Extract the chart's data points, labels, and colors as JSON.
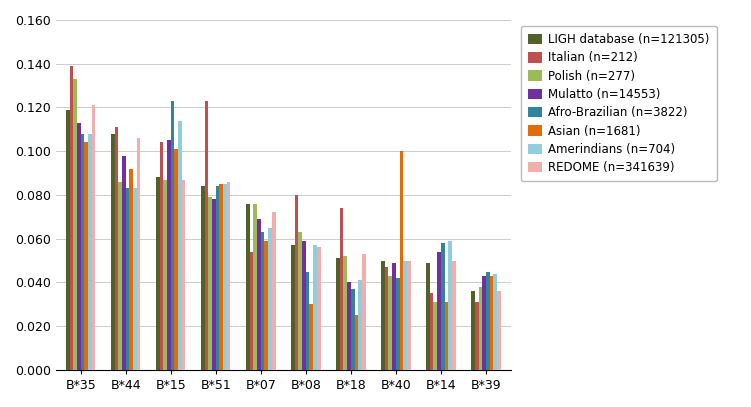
{
  "categories": [
    "B*35",
    "B*44",
    "B*15",
    "B*51",
    "B*07",
    "B*08",
    "B*18",
    "B*40",
    "B*14",
    "B*39"
  ],
  "series": [
    {
      "label": "LIGH database (n=121305)",
      "color": "#4F6228",
      "values": [
        0.119,
        0.108,
        0.088,
        0.084,
        0.076,
        0.057,
        0.051,
        0.05,
        0.049,
        0.036
      ]
    },
    {
      "label": "Italian (n=212)",
      "color": "#C0504D",
      "values": [
        0.139,
        0.111,
        0.104,
        0.123,
        0.054,
        0.08,
        0.074,
        0.047,
        0.035,
        0.031
      ]
    },
    {
      "label": "Polish (n=277)",
      "color": "#9BBB59",
      "values": [
        0.133,
        0.086,
        0.087,
        0.079,
        0.076,
        0.063,
        0.052,
        0.043,
        0.031,
        0.038
      ]
    },
    {
      "label": "Mulatto (n=14553)",
      "color": "#7030A0",
      "values": [
        0.113,
        0.098,
        0.105,
        0.078,
        0.069,
        0.059,
        0.04,
        0.049,
        0.054,
        0.043
      ]
    },
    {
      "label": "Afro-Brazilian (n=3822)",
      "color": "#31849B",
      "values": [
        0.108,
        0.083,
        0.123,
        0.084,
        0.063,
        0.045,
        0.037,
        0.042,
        0.058,
        0.045
      ]
    },
    {
      "label": "Asian (n=1681)",
      "color": "#E36C09",
      "values": [
        0.104,
        0.092,
        0.101,
        0.085,
        0.059,
        0.03,
        0.025,
        0.1,
        0.031,
        0.043
      ]
    },
    {
      "label": "Amerindians (n=704)",
      "color": "#92CDDC",
      "values": [
        0.108,
        0.083,
        0.114,
        0.085,
        0.065,
        0.057,
        0.041,
        0.05,
        0.059,
        0.044
      ]
    },
    {
      "label": "REDOME (n=341639)",
      "color": "#F2AEAD",
      "values": [
        0.121,
        0.106,
        0.087,
        0.086,
        0.072,
        0.056,
        0.053,
        0.05,
        0.05,
        0.036
      ]
    }
  ],
  "ylim": [
    0.0,
    0.16
  ],
  "yticks": [
    0.0,
    0.02,
    0.04,
    0.06,
    0.08,
    0.1,
    0.12,
    0.14,
    0.16
  ],
  "background_color": "#ffffff",
  "legend_fontsize": 8.5,
  "tick_fontsize": 9,
  "bar_width": 0.082
}
